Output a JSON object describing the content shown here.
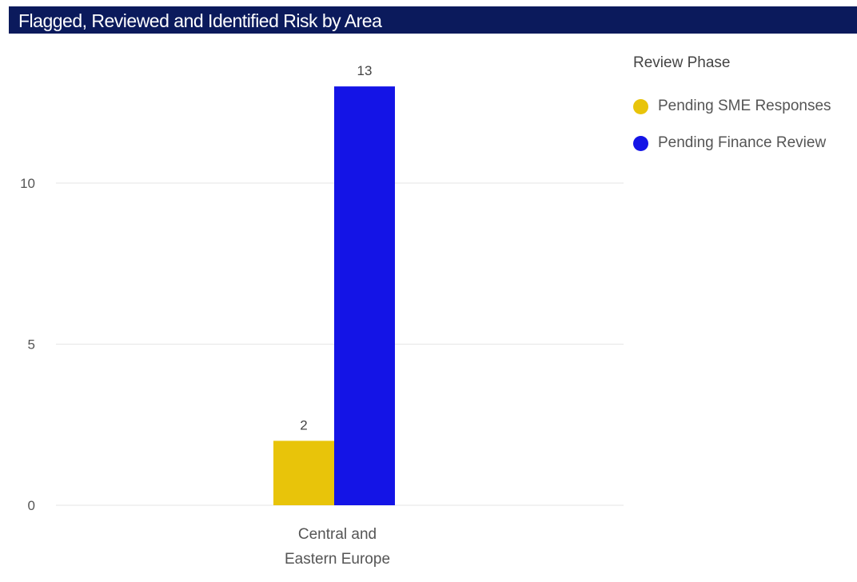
{
  "chart_data": {
    "type": "bar",
    "title": "Flagged, Reviewed and Identified Risk by Area",
    "categories": [
      [
        "Central and",
        "Eastern Europe"
      ]
    ],
    "series": [
      {
        "name": "Pending SME Responses",
        "values": [
          2
        ],
        "color": "#e8c40a"
      },
      {
        "name": "Pending Finance Review",
        "values": [
          13
        ],
        "color": "#1414e6"
      }
    ],
    "yticks": [
      0,
      5,
      10
    ],
    "ylim": [
      0,
      13.5
    ],
    "grid": true,
    "data_labels": true,
    "legend": {
      "title": "Review Phase",
      "placement": "right"
    }
  }
}
